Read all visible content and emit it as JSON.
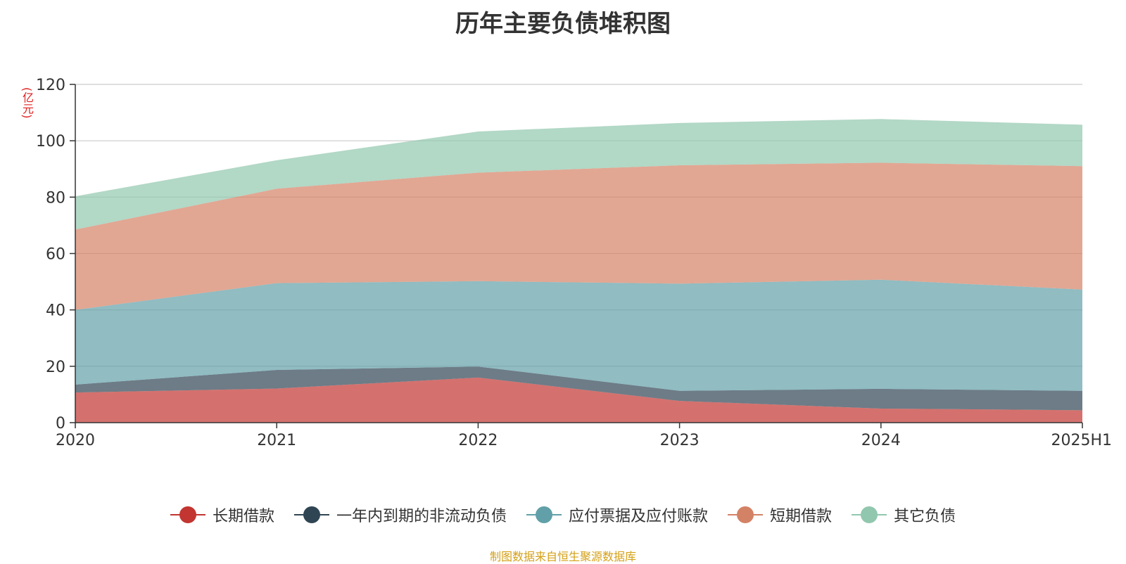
{
  "chart_data": {
    "type": "area",
    "title": "历年主要负债堆积图",
    "y_unit": "(亿元)",
    "categories": [
      "2020",
      "2021",
      "2022",
      "2023",
      "2024",
      "2025H1"
    ],
    "ylim": [
      0,
      120
    ],
    "yticks": [
      0,
      20,
      40,
      60,
      80,
      100,
      120
    ],
    "grid": true,
    "stacked": true,
    "legend_position": "bottom",
    "series": [
      {
        "name": "长期借款",
        "color": "#c23531",
        "values": [
          10.7,
          12.1,
          16.0,
          7.7,
          5.0,
          4.4
        ]
      },
      {
        "name": "一年内到期的非流动负债",
        "color": "#2f4554",
        "values": [
          2.8,
          6.6,
          3.9,
          3.6,
          7.0,
          6.9
        ]
      },
      {
        "name": "应付票据及应付账款",
        "color": "#61a0a8",
        "values": [
          26.5,
          30.8,
          30.3,
          38.0,
          38.7,
          35.9
        ]
      },
      {
        "name": "短期借款",
        "color": "#d48265",
        "values": [
          28.5,
          33.5,
          38.5,
          42.0,
          41.5,
          43.8
        ]
      },
      {
        "name": "其它负债",
        "color": "#91c7ae",
        "values": [
          11.8,
          10.1,
          14.6,
          15.0,
          15.5,
          14.7
        ]
      }
    ]
  },
  "source_note": "制图数据来自恒生聚源数据库"
}
